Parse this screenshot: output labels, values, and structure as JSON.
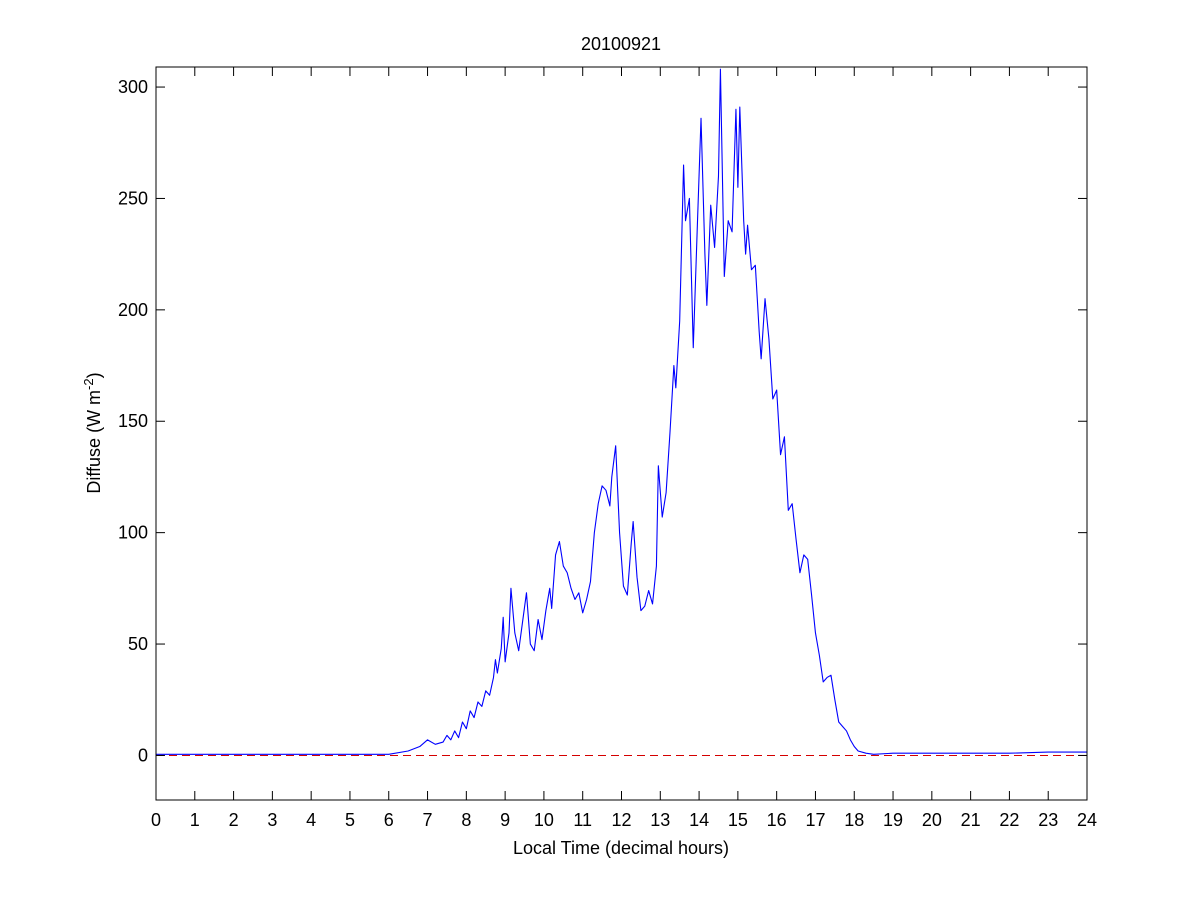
{
  "chart_data": {
    "type": "line",
    "title": "20100921",
    "xlabel": "Local Time (decimal hours)",
    "ylabel": {
      "text": "Diffuse (W m",
      "superscript": "-2",
      "suffix": ")"
    },
    "x": [
      0,
      1,
      2,
      3,
      4,
      5,
      6,
      6.5,
      6.8,
      7,
      7.2,
      7.4,
      7.5,
      7.6,
      7.7,
      7.8,
      7.9,
      8,
      8.1,
      8.2,
      8.3,
      8.4,
      8.5,
      8.6,
      8.7,
      8.75,
      8.8,
      8.9,
      8.95,
      9,
      9.1,
      9.15,
      9.25,
      9.35,
      9.45,
      9.55,
      9.65,
      9.75,
      9.85,
      9.95,
      10.05,
      10.15,
      10.2,
      10.3,
      10.4,
      10.5,
      10.6,
      10.7,
      10.8,
      10.9,
      11,
      11.1,
      11.2,
      11.3,
      11.4,
      11.5,
      11.6,
      11.7,
      11.75,
      11.85,
      11.95,
      12.05,
      12.15,
      12.25,
      12.3,
      12.4,
      12.5,
      12.6,
      12.7,
      12.8,
      12.9,
      12.95,
      13.05,
      13.15,
      13.25,
      13.35,
      13.4,
      13.5,
      13.6,
      13.65,
      13.75,
      13.85,
      13.95,
      14.05,
      14.15,
      14.2,
      14.3,
      14.4,
      14.5,
      14.55,
      14.65,
      14.75,
      14.85,
      14.95,
      15,
      15.05,
      15.15,
      15.2,
      15.25,
      15.35,
      15.45,
      15.55,
      15.6,
      15.7,
      15.8,
      15.9,
      16,
      16.1,
      16.2,
      16.3,
      16.4,
      16.5,
      16.6,
      16.7,
      16.8,
      16.9,
      17,
      17.1,
      17.2,
      17.3,
      17.4,
      17.5,
      17.6,
      17.7,
      17.8,
      17.9,
      18,
      18.1,
      18.3,
      18.5,
      19,
      20,
      21,
      22,
      23,
      24
    ],
    "series": [
      {
        "color": "#0000ff",
        "values": [
          0.5,
          0.5,
          0.5,
          0.5,
          0.5,
          0.5,
          0.5,
          2,
          4,
          7,
          5,
          6,
          9,
          7,
          11,
          8,
          15,
          12,
          20,
          17,
          24,
          22,
          29,
          27,
          35,
          43,
          37,
          48,
          62,
          42,
          55,
          75,
          55,
          47,
          60,
          73,
          50,
          47,
          61,
          52,
          65,
          75,
          66,
          90,
          96,
          85,
          82,
          75,
          70,
          73,
          64,
          70,
          78,
          100,
          113,
          121,
          119,
          112,
          125,
          139,
          100,
          76,
          72,
          95,
          105,
          80,
          65,
          67,
          74,
          68,
          85,
          130,
          107,
          118,
          145,
          175,
          165,
          195,
          265,
          240,
          250,
          183,
          235,
          286,
          225,
          202,
          247,
          228,
          260,
          308,
          215,
          240,
          235,
          290,
          255,
          291,
          240,
          225,
          238,
          218,
          220,
          190,
          178,
          205,
          187,
          160,
          164,
          135,
          143,
          110,
          113,
          97,
          82,
          90,
          88,
          72,
          55,
          45,
          33,
          35,
          36,
          25,
          15,
          13,
          11,
          7,
          4,
          2,
          1,
          0.5,
          1,
          1,
          1,
          1,
          1.5,
          1.5
        ]
      }
    ],
    "reference_line": {
      "value": 0,
      "color": "#d40000",
      "style": "dashed"
    },
    "xlim": [
      0,
      24
    ],
    "ylim": [
      -20,
      309
    ],
    "xticks": [
      0,
      1,
      2,
      3,
      4,
      5,
      6,
      7,
      8,
      9,
      10,
      11,
      12,
      13,
      14,
      15,
      16,
      17,
      18,
      19,
      20,
      21,
      22,
      23,
      24
    ],
    "yticks": [
      0,
      50,
      100,
      150,
      200,
      250,
      300
    ],
    "grid": false,
    "box": true
  }
}
